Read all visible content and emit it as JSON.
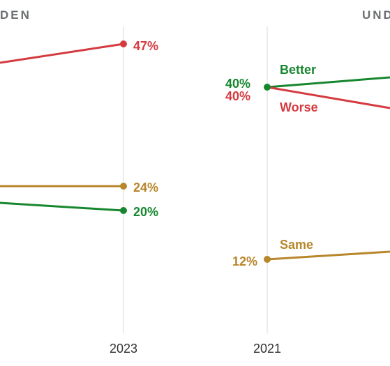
{
  "colors": {
    "worse": "#d53a3f",
    "better": "#17872f",
    "same": "#b8862b",
    "gridline": "#d9d9d9",
    "title": "#6b6e70"
  },
  "chart_data": [
    {
      "type": "line",
      "title": "DEN",
      "x": [
        "2023"
      ],
      "series": [
        {
          "key": "worse",
          "values": [
            47
          ],
          "labels": [
            "47%"
          ]
        },
        {
          "key": "same",
          "values": [
            24
          ],
          "labels": [
            "24%"
          ]
        },
        {
          "key": "better",
          "values": [
            20
          ],
          "labels": [
            "20%"
          ]
        }
      ],
      "x_tick_labels": [
        "2023"
      ],
      "grid": true,
      "legend": "none"
    },
    {
      "type": "line",
      "title": "UND",
      "x": [
        "2021"
      ],
      "series": [
        {
          "key": "better",
          "name": "Better",
          "values": [
            40
          ],
          "labels": [
            "40%"
          ]
        },
        {
          "key": "worse",
          "name": "Worse",
          "values": [
            40
          ],
          "labels": [
            "40%"
          ]
        },
        {
          "key": "same",
          "name": "Same",
          "values": [
            12
          ],
          "labels": [
            "12%"
          ]
        }
      ],
      "x_tick_labels": [
        "2021"
      ],
      "grid": true,
      "legend": "inline"
    }
  ]
}
